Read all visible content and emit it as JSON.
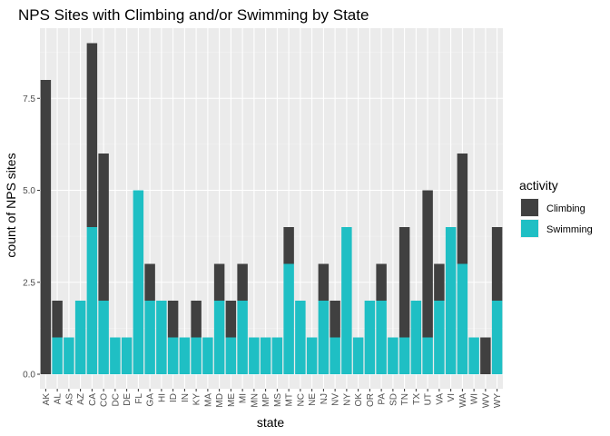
{
  "chart_data": {
    "type": "bar",
    "stacked": true,
    "title": "NPS Sites with Climbing and/or Swimming by State",
    "xlabel": "state",
    "ylabel": "count of NPS sites",
    "ylim": [
      0,
      9.45
    ],
    "yticks": [
      "0.0",
      "2.5",
      "5.0",
      "7.5"
    ],
    "ytick_values": [
      0,
      2.5,
      5,
      7.5
    ],
    "grid": true,
    "legend": {
      "title": "activity",
      "position": "right"
    },
    "categories": [
      "AK",
      "AL",
      "AS",
      "AZ",
      "CA",
      "CO",
      "DC",
      "DE",
      "FL",
      "GA",
      "HI",
      "ID",
      "IN",
      "KY",
      "MA",
      "MD",
      "ME",
      "MI",
      "MN",
      "MP",
      "MS",
      "MT",
      "NC",
      "NE",
      "NJ",
      "NV",
      "NY",
      "OK",
      "OR",
      "PA",
      "SD",
      "TN",
      "TX",
      "UT",
      "VA",
      "VI",
      "WA",
      "WI",
      "WV",
      "WY"
    ],
    "series": [
      {
        "name": "Swimming",
        "color": "#1FBFC4",
        "values": [
          0,
          1,
          1,
          2,
          4,
          2,
          1,
          1,
          5,
          2,
          2,
          1,
          1,
          1,
          1,
          2,
          1,
          2,
          1,
          1,
          1,
          3,
          2,
          1,
          2,
          1,
          4,
          1,
          2,
          2,
          1,
          1,
          2,
          1,
          2,
          4,
          3,
          1,
          0,
          2
        ]
      },
      {
        "name": "Climbing",
        "color": "#404040",
        "values": [
          8,
          1,
          0,
          0,
          5,
          4,
          0,
          0,
          0,
          1,
          0,
          1,
          0,
          1,
          0,
          1,
          1,
          1,
          0,
          0,
          0,
          1,
          0,
          0,
          1,
          1,
          0,
          0,
          0,
          1,
          0,
          3,
          0,
          4,
          1,
          0,
          3,
          0,
          1,
          2
        ]
      }
    ]
  }
}
